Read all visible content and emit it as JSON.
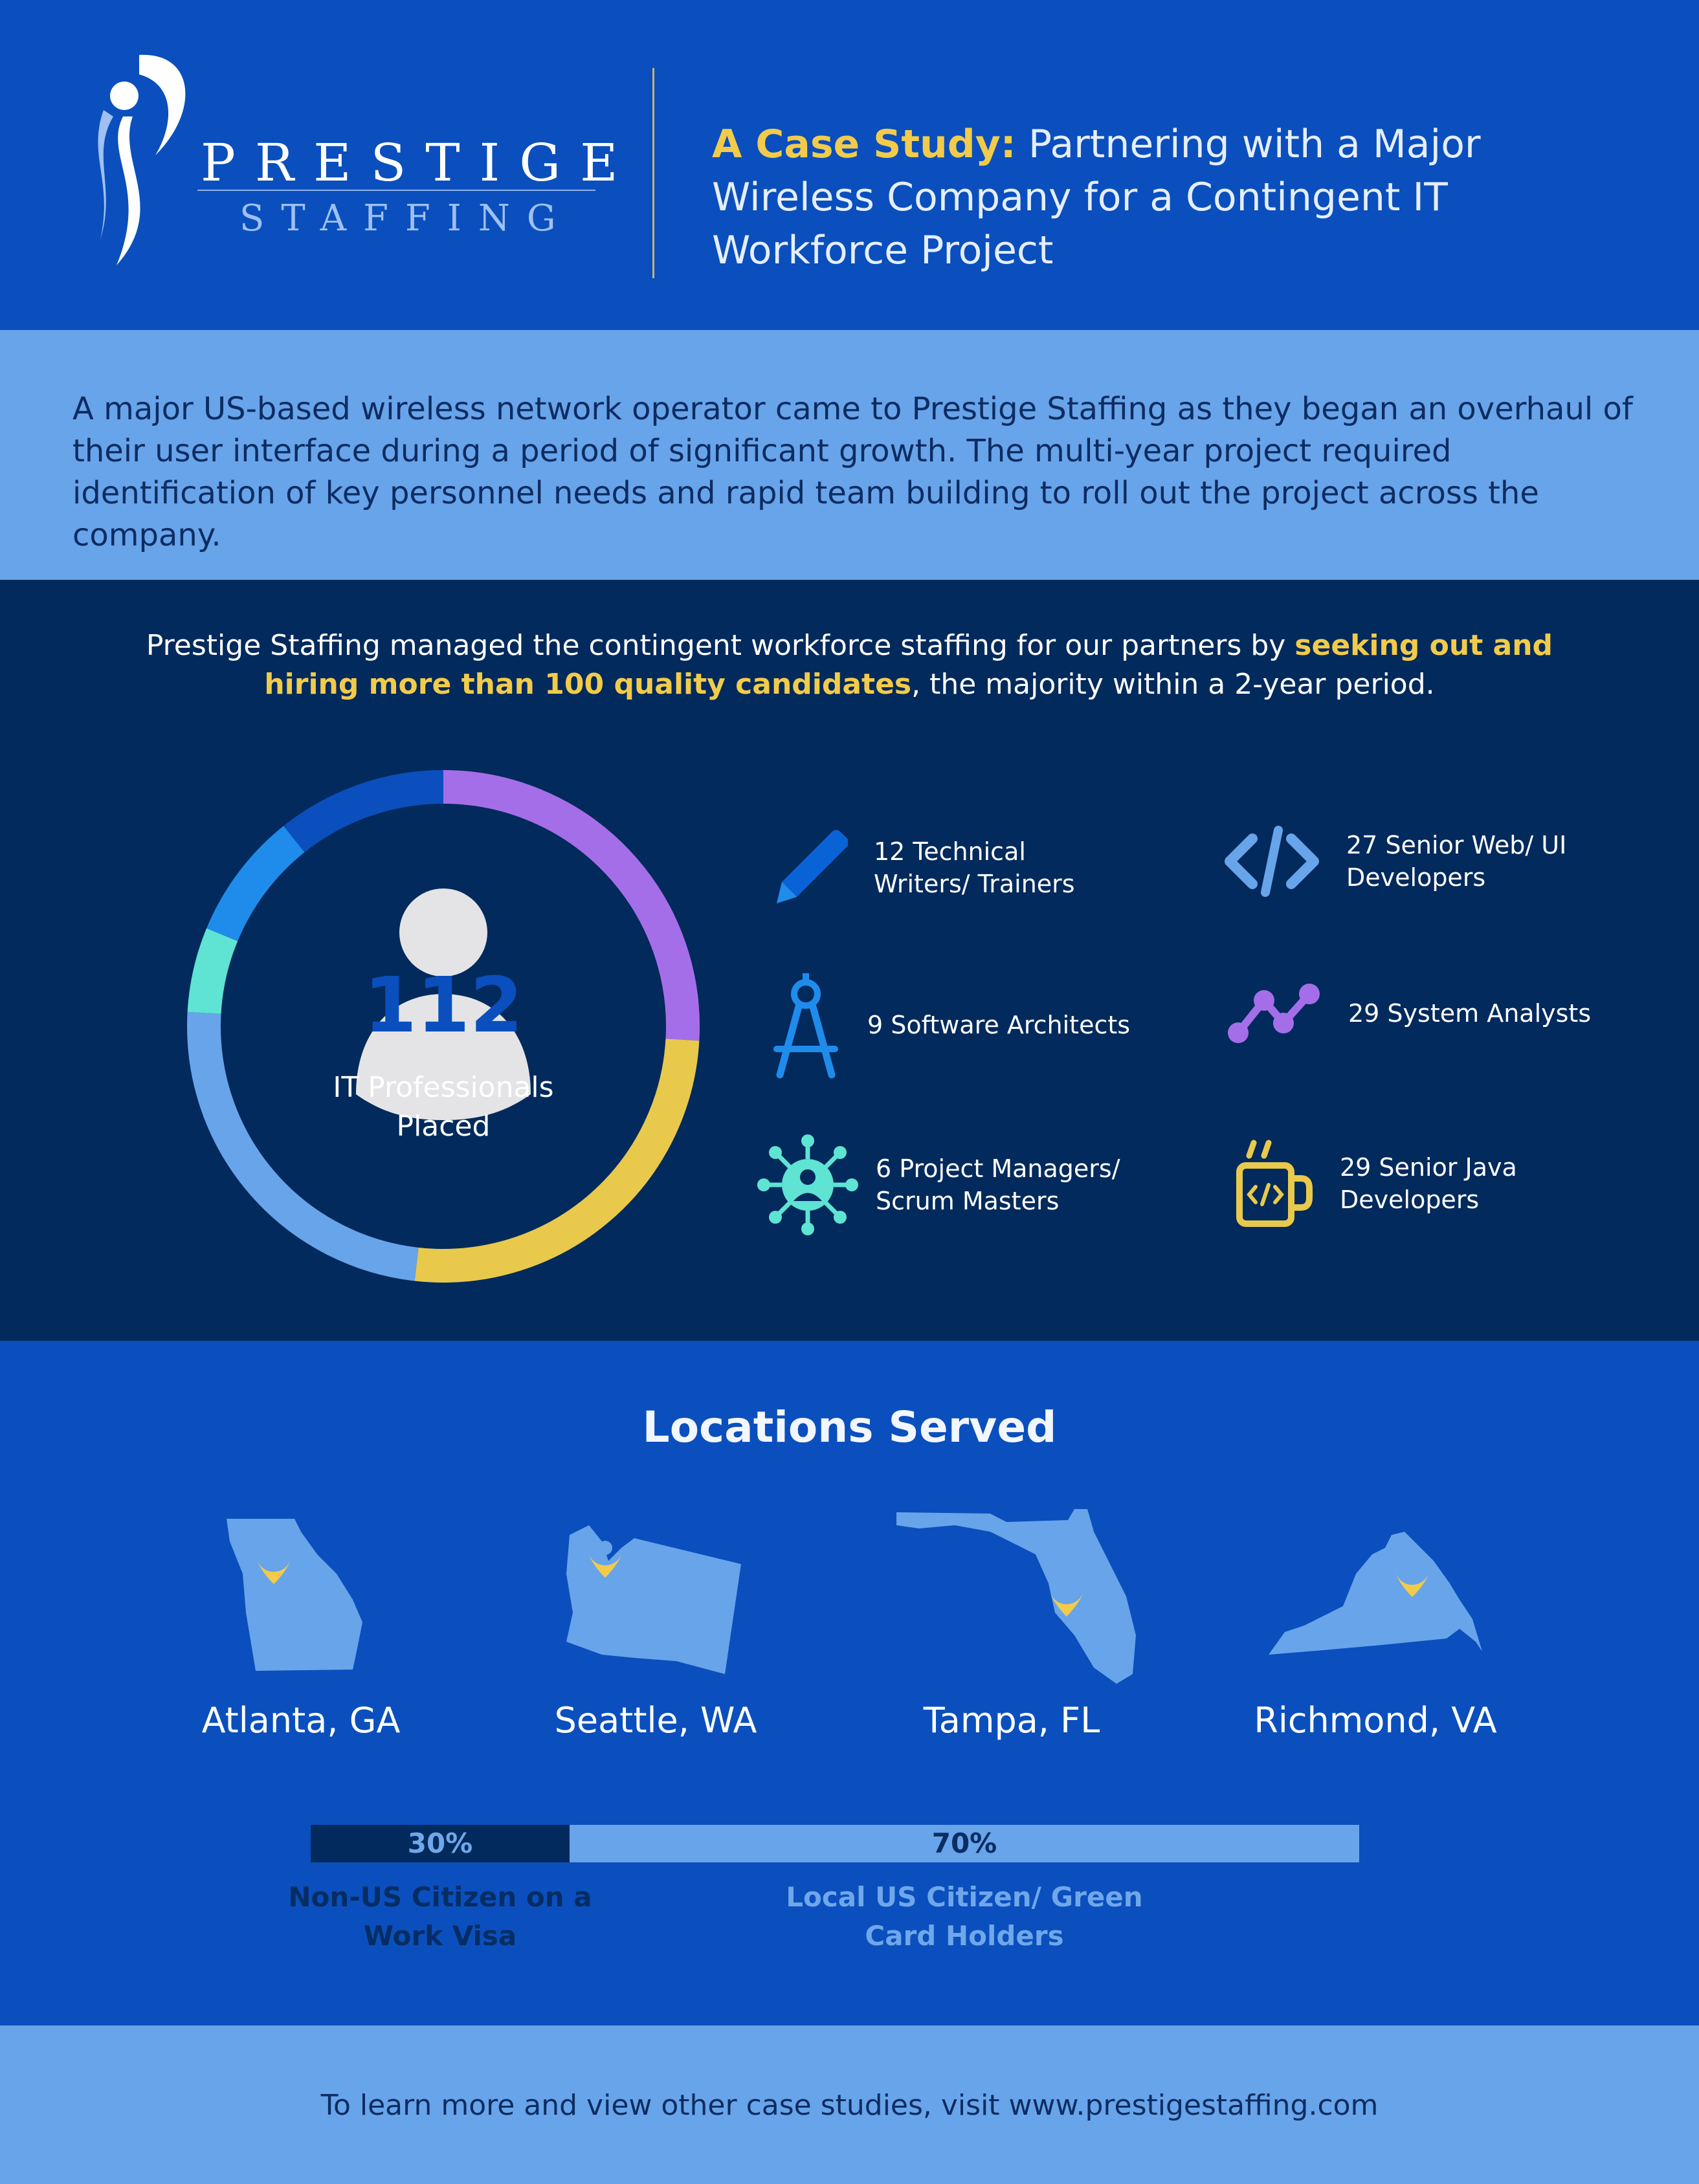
{
  "colors": {
    "brand_blue": "#0a4fbd",
    "light_blue": "#68a4ea",
    "navy": "#032a5c",
    "gold": "#f2cb4a",
    "purple": "#a56ee9",
    "teal": "#5fe3d3",
    "sky": "#1f8cec"
  },
  "logo": {
    "word": "PRESTIGE",
    "sub": "STAFFING"
  },
  "header": {
    "title_highlight": "A Case Study:",
    "title_rest": " Partnering with a Major Wireless Company for a Contingent IT Workforce Project"
  },
  "intro": {
    "text": "A major US-based wireless network operator came to Prestige Staffing as they began an overhaul of their user interface during a period of significant growth. The multi-year project required identification of key personnel needs and rapid team building to roll out the project across the company."
  },
  "stats": {
    "lead_before": "Prestige Staffing managed the contingent workforce staffing for our partners by ",
    "lead_highlight": "seeking out and hiring more than 100 quality candidates",
    "lead_after": ", the majority within a 2-year period.",
    "total": "112",
    "total_label": "IT Professionals Placed",
    "roles": [
      {
        "label": "12 Technical Writers/ Trainers",
        "icon": "pencil-icon",
        "count": 12,
        "color": "#0a4fbd"
      },
      {
        "label": "27 Senior Web/ UI Developers",
        "icon": "code-icon",
        "count": 27,
        "color": "#68a4ea"
      },
      {
        "label": "9 Software Architects",
        "icon": "compass-icon",
        "count": 9,
        "color": "#1f8cec"
      },
      {
        "label": "29 System Analysts",
        "icon": "graph-icon",
        "count": 29,
        "color": "#a56ee9"
      },
      {
        "label": "6 Project Managers/ Scrum Masters",
        "icon": "network-person-icon",
        "count": 6,
        "color": "#5fe3d3"
      },
      {
        "label": "29 Senior Java Developers",
        "icon": "java-cup-icon",
        "count": 29,
        "color": "#e8c94c"
      }
    ]
  },
  "locations": {
    "title": "Locations Served",
    "cities": [
      "Atlanta, GA",
      "Seattle, WA",
      "Tampa, FL",
      "Richmond, VA"
    ],
    "split": [
      {
        "percent": "30%",
        "value": 30,
        "label": "Non-US Citizen on a Work Visa"
      },
      {
        "percent": "70%",
        "value": 70,
        "label": "Local US Citizen/ Green Card Holders"
      }
    ]
  },
  "footer": {
    "text": "To learn more and view other case studies, visit www.prestigestaffing.com"
  }
}
